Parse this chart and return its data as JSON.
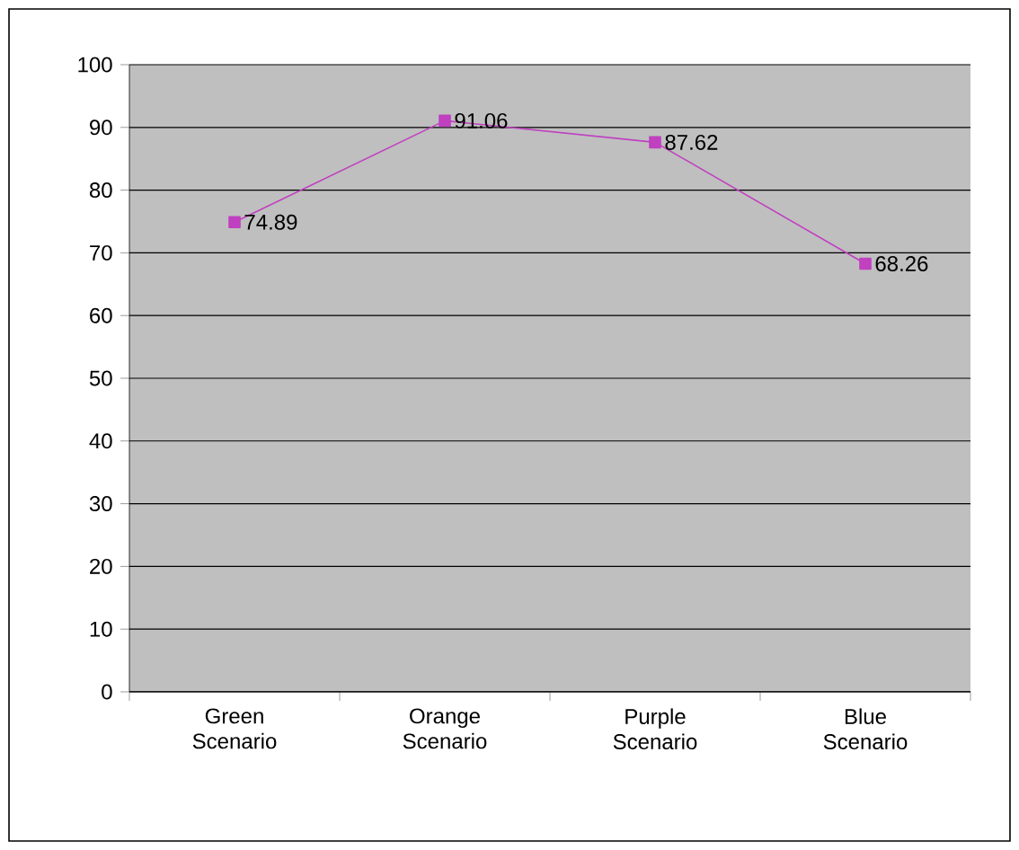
{
  "chart_data": {
    "type": "line",
    "categories": [
      "Green Scenario",
      "Orange Scenario",
      "Purple Scenario",
      "Blue Scenario"
    ],
    "series": [
      {
        "color": "#c040c0",
        "values": [
          74.89,
          91.06,
          87.62,
          68.26
        ]
      }
    ],
    "ylim": [
      0,
      100
    ],
    "yticks": [
      0,
      10,
      20,
      30,
      40,
      50,
      60,
      70,
      80,
      90,
      100
    ],
    "grid": "y",
    "marker": "square",
    "line_style": "solid",
    "data_labels": true
  }
}
